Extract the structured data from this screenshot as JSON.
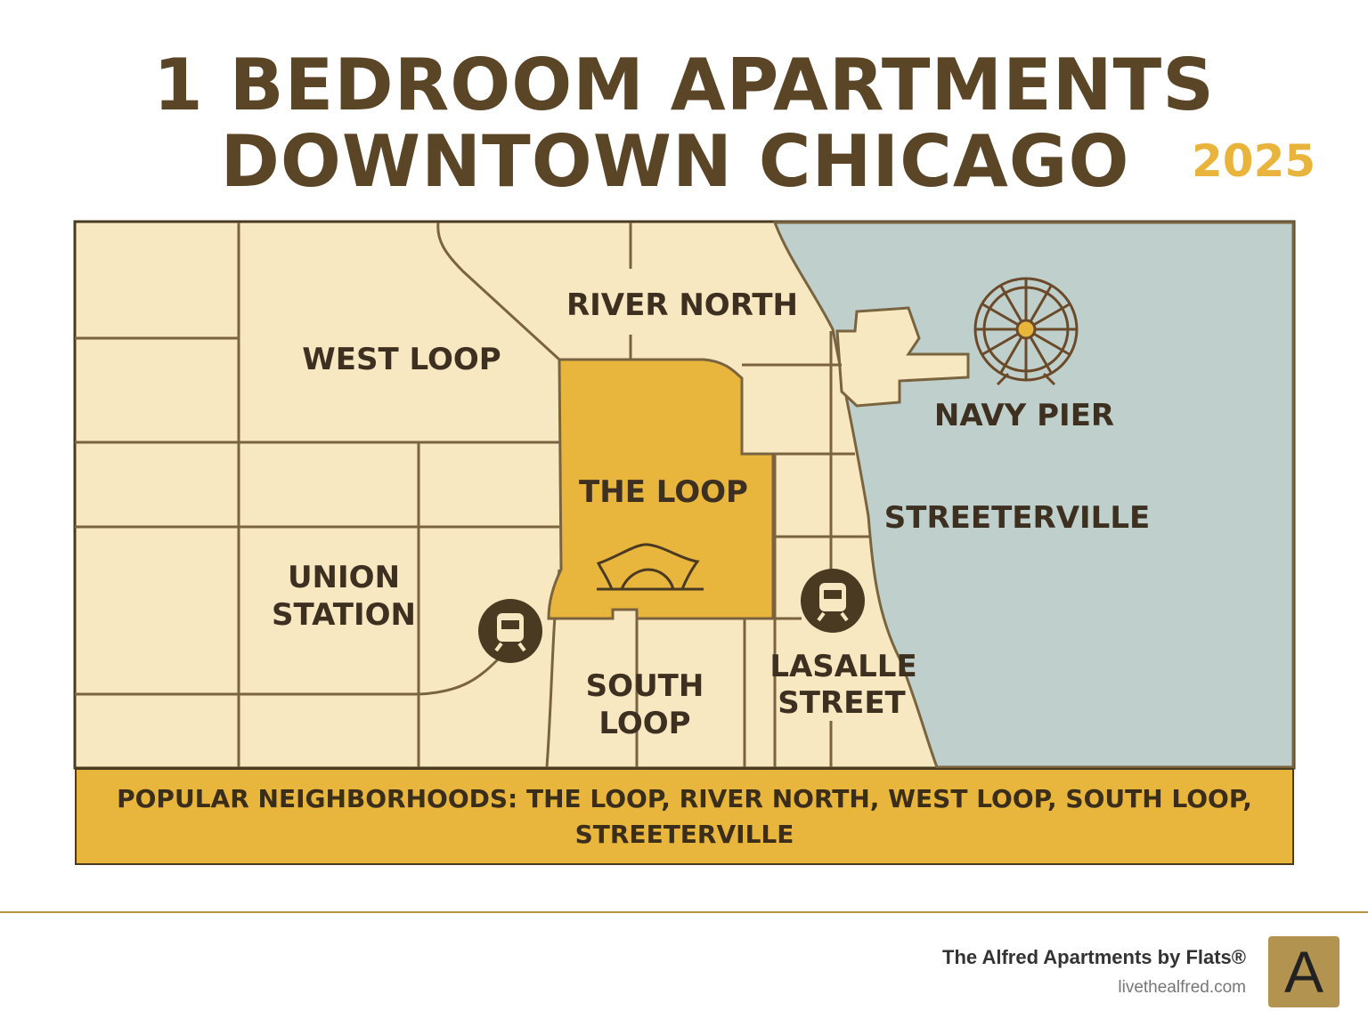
{
  "title": {
    "line1": "1 BEDROOM APARTMENTS",
    "line2": "DOWNTOWN CHICAGO",
    "year": "2025"
  },
  "colors": {
    "title": "#5a4526",
    "accent": "#e9b43c",
    "land": "#f8e8c2",
    "loop": "#e8b53d",
    "water": "#bfd0cc",
    "street": "#7a6440"
  },
  "map": {
    "labels": {
      "river_north": "RIVER NORTH",
      "west_loop": "WEST LOOP",
      "the_loop": "THE LOOP",
      "navy_pier": "NAVY PIER",
      "streeterville": "STREETERVILLE",
      "union_station_1": "UNION",
      "union_station_2": "STATION",
      "south_loop_1": "SOUTH",
      "south_loop_2": "LOOP",
      "lasalle_1": "LASALLE",
      "lasalle_2": "STREET"
    },
    "icons": [
      "ferris-wheel-icon",
      "pavilion-icon",
      "train-icon",
      "train-icon"
    ]
  },
  "banner": "POPULAR NEIGHBORHOODS: THE LOOP, RIVER NORTH, WEST LOOP, SOUTH LOOP, STREETERVILLE",
  "footer": {
    "brand": "The Alfred Apartments by Flats®",
    "website": "livethealfred.com",
    "logo_letter": "A"
  }
}
